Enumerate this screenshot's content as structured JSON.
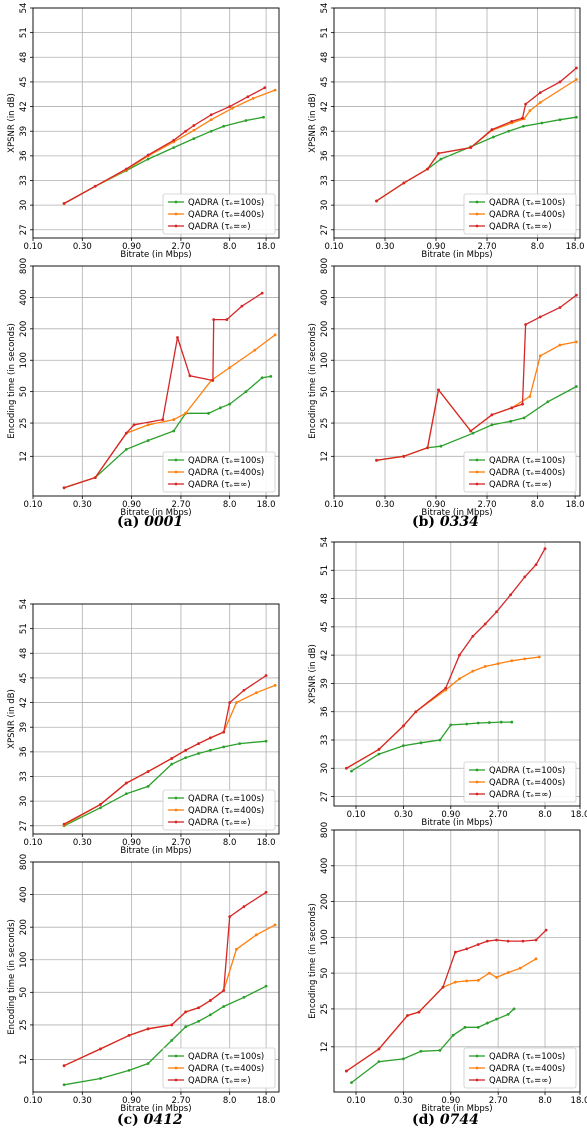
{
  "legend_labels": [
    "QADRA (τₑ=100s)",
    "QADRA (τₑ=400s)",
    "QADRA (τₑ=∞)"
  ],
  "series_colors": [
    "#2ca02c",
    "#ff7f0e",
    "#d62728"
  ],
  "captions": [
    {
      "label": "(a)",
      "name": "0001"
    },
    {
      "label": "(b)",
      "name": "0334"
    },
    {
      "label": "(c)",
      "name": "0412"
    },
    {
      "label": "(d)",
      "name": "0744"
    }
  ],
  "chart_data": [
    {
      "id": "a-psnr",
      "type": "line",
      "scale_x": "log",
      "xlabel": "Bitrate (in Mbps)",
      "ylabel": "XPSNR (in dB)",
      "xticks": [
        "0.10",
        "0.30",
        "0.90",
        "2.70",
        "8.0",
        "18.0"
      ],
      "xtick_values": [
        0.1,
        0.3,
        0.9,
        2.7,
        8.0,
        18.0
      ],
      "yticks": [
        "27",
        "30",
        "33",
        "36",
        "39",
        "42",
        "45",
        "48",
        "51",
        "54"
      ],
      "xlim": [
        0.1,
        24
      ],
      "ylim": [
        26,
        54
      ],
      "grid": true,
      "legend": "lower-right",
      "series": [
        {
          "name": "QADRA (τₑ=100s)",
          "x": [
            0.2,
            0.4,
            0.8,
            1.3,
            2.3,
            3.6,
            5.3,
            7.0,
            11.5,
            17.0
          ],
          "y": [
            30.2,
            32.3,
            34.2,
            35.6,
            37.0,
            38.1,
            39.0,
            39.6,
            40.3,
            40.7
          ]
        },
        {
          "name": "QADRA (τₑ=400s)",
          "x": [
            0.2,
            0.4,
            0.8,
            1.3,
            2.3,
            3.6,
            5.3,
            8.5,
            13.5,
            22.0
          ],
          "y": [
            30.2,
            32.3,
            34.3,
            36.0,
            37.7,
            39.1,
            40.4,
            41.8,
            43.0,
            44.0
          ]
        },
        {
          "name": "QADRA (τₑ=∞)",
          "x": [
            0.2,
            0.4,
            0.8,
            1.3,
            2.3,
            3.0,
            3.6,
            5.3,
            8.0,
            12.0,
            17.5
          ],
          "y": [
            30.2,
            32.3,
            34.4,
            36.1,
            37.9,
            39.0,
            39.7,
            41.0,
            42.0,
            43.2,
            44.3
          ]
        }
      ]
    },
    {
      "id": "b-psnr",
      "type": "line",
      "scale_x": "log",
      "xlabel": "Bitrate (in Mbps)",
      "ylabel": "XPSNR (in dB)",
      "xticks": [
        "0.10",
        "0.30",
        "0.90",
        "2.70",
        "8.0",
        "18.0"
      ],
      "xtick_values": [
        0.1,
        0.3,
        0.9,
        2.7,
        8.0,
        18.0
      ],
      "yticks": [
        "27",
        "30",
        "33",
        "36",
        "39",
        "42",
        "45",
        "48",
        "51",
        "54"
      ],
      "xlim": [
        0.1,
        20
      ],
      "ylim": [
        26,
        54
      ],
      "grid": true,
      "legend": "lower-right",
      "series": [
        {
          "name": "QADRA (τₑ=100s)",
          "x": [
            0.25,
            0.45,
            0.75,
            1.0,
            1.9,
            3.1,
            4.3,
            5.9,
            8.8,
            13.0,
            18.5
          ],
          "y": [
            30.5,
            32.7,
            34.4,
            35.6,
            37.1,
            38.3,
            39.0,
            39.6,
            40.0,
            40.4,
            40.7
          ]
        },
        {
          "name": "QADRA (τₑ=400s)",
          "x": [
            0.25,
            0.45,
            0.75,
            0.95,
            1.9,
            3.0,
            4.6,
            6.0,
            6.8,
            8.5,
            18.5
          ],
          "y": [
            30.5,
            32.7,
            34.4,
            36.3,
            37.0,
            39.1,
            40.0,
            40.5,
            41.5,
            42.5,
            45.3
          ]
        },
        {
          "name": "QADRA (τₑ=∞)",
          "x": [
            0.25,
            0.45,
            0.75,
            0.95,
            1.9,
            3.0,
            4.6,
            5.8,
            6.2,
            8.5,
            13.0,
            18.5
          ],
          "y": [
            30.5,
            32.7,
            34.4,
            36.3,
            37.0,
            39.2,
            40.2,
            40.6,
            42.3,
            43.7,
            45.0,
            46.7
          ]
        }
      ]
    },
    {
      "id": "a-time",
      "type": "line",
      "scale_x": "log",
      "scale_y": "log",
      "xlabel": "Bitrate (in Mbps)",
      "ylabel": "Encoding time (in seconds)",
      "xticks": [
        "0.10",
        "0.30",
        "0.90",
        "2.70",
        "8.0",
        "18.0"
      ],
      "xtick_values": [
        0.1,
        0.3,
        0.9,
        2.7,
        8.0,
        18.0
      ],
      "yticks": [
        "12",
        "25",
        "50",
        "100",
        "200",
        "400",
        "800"
      ],
      "ytick_values": [
        12,
        25,
        50,
        100,
        200,
        400,
        800
      ],
      "xlim": [
        0.1,
        24
      ],
      "ylim": [
        5,
        800
      ],
      "grid": true,
      "legend": "lower-right",
      "series": [
        {
          "name": "QADRA (τₑ=100s)",
          "x": [
            0.2,
            0.4,
            0.8,
            1.3,
            2.3,
            3.0,
            5.0,
            6.5,
            8.0,
            11.5,
            16.5,
            20.0
          ],
          "y": [
            6,
            7.5,
            14,
            17,
            21,
            31,
            31,
            35,
            38,
            50,
            68,
            70
          ]
        },
        {
          "name": "QADRA (τₑ=400s)",
          "x": [
            0.2,
            0.4,
            0.8,
            1.3,
            2.3,
            3.0,
            5.3,
            8.0,
            14.0,
            22.0
          ],
          "y": [
            6,
            7.5,
            20,
            24,
            27,
            31,
            64,
            85,
            125,
            175
          ]
        },
        {
          "name": "QADRA (τₑ=∞)",
          "x": [
            0.2,
            0.4,
            0.8,
            0.95,
            1.8,
            2.5,
            3.3,
            5.5,
            5.6,
            7.5,
            10.5,
            16.5
          ],
          "y": [
            6,
            7.5,
            20,
            24,
            27,
            165,
            71,
            64,
            245,
            245,
            330,
            440
          ]
        }
      ]
    },
    {
      "id": "b-time",
      "type": "line",
      "scale_x": "log",
      "scale_y": "log",
      "xlabel": "Bitrate (in Mbps)",
      "ylabel": "Encoding time (in seconds)",
      "xticks": [
        "0.10",
        "0.30",
        "0.90",
        "2.70",
        "8.0",
        "18.0"
      ],
      "xtick_values": [
        0.1,
        0.3,
        0.9,
        2.7,
        8.0,
        18.0
      ],
      "yticks": [
        "12",
        "25",
        "50",
        "100",
        "200",
        "400",
        "800"
      ],
      "ytick_values": [
        12,
        25,
        50,
        100,
        200,
        400,
        800
      ],
      "xlim": [
        0.1,
        20
      ],
      "ylim": [
        5,
        800
      ],
      "grid": true,
      "legend": "lower-right",
      "series": [
        {
          "name": "QADRA (τₑ=100s)",
          "x": [
            0.25,
            0.45,
            0.75,
            1.0,
            2.0,
            3.0,
            4.5,
            6.0,
            10.0,
            18.5
          ],
          "y": [
            11,
            12,
            14.5,
            15,
            20,
            24,
            26,
            28,
            40,
            56
          ]
        },
        {
          "name": "QADRA (τₑ=400s)",
          "x": [
            0.25,
            0.45,
            0.75,
            0.95,
            1.9,
            3.0,
            4.6,
            6.8,
            8.5,
            13.0,
            18.5
          ],
          "y": [
            11,
            12,
            14.5,
            52,
            21,
            30,
            35,
            45,
            110,
            140,
            150
          ]
        },
        {
          "name": "QADRA (τₑ=∞)",
          "x": [
            0.25,
            0.45,
            0.75,
            0.95,
            1.9,
            3.0,
            4.6,
            5.8,
            6.2,
            8.5,
            13.0,
            18.5
          ],
          "y": [
            11,
            12,
            14.5,
            52,
            21,
            30,
            35,
            38,
            220,
            260,
            320,
            420
          ]
        }
      ]
    },
    {
      "id": "c-psnr",
      "type": "line",
      "scale_x": "log",
      "xlabel": "Bitrate (in Mbps)",
      "ylabel": "XPSNR (in dB)",
      "xticks": [
        "0.10",
        "0.30",
        "0.90",
        "2.70",
        "8.0",
        "18.0"
      ],
      "xtick_values": [
        0.1,
        0.3,
        0.9,
        2.7,
        8.0,
        18.0
      ],
      "yticks": [
        "27",
        "30",
        "33",
        "36",
        "39",
        "42",
        "45",
        "48",
        "51",
        "54"
      ],
      "xlim": [
        0.1,
        24
      ],
      "ylim": [
        26,
        54
      ],
      "grid": true,
      "legend": "lower-right",
      "series": [
        {
          "name": "QADRA (τₑ=100s)",
          "x": [
            0.2,
            0.45,
            0.8,
            1.3,
            2.2,
            3.0,
            4.0,
            5.2,
            7.0,
            10.0,
            18.0
          ],
          "y": [
            27.0,
            29.2,
            30.9,
            31.8,
            34.5,
            35.3,
            35.8,
            36.2,
            36.6,
            37.0,
            37.3
          ]
        },
        {
          "name": "QADRA (τₑ=400s)",
          "x": [
            0.2,
            0.45,
            0.8,
            1.3,
            2.2,
            3.0,
            4.0,
            5.2,
            7.0,
            9.3,
            14.5,
            22.0
          ],
          "y": [
            27.1,
            29.6,
            32.2,
            33.6,
            35.2,
            36.2,
            37.0,
            37.7,
            38.4,
            42.0,
            43.2,
            44.1
          ]
        },
        {
          "name": "QADRA (τₑ=∞)",
          "x": [
            0.2,
            0.45,
            0.8,
            1.3,
            2.2,
            3.0,
            4.0,
            5.2,
            7.0,
            8.0,
            11.0,
            18.0
          ],
          "y": [
            27.2,
            29.6,
            32.2,
            33.6,
            35.2,
            36.2,
            37.0,
            37.7,
            38.4,
            42.0,
            43.5,
            45.3
          ]
        }
      ]
    },
    {
      "id": "c-time",
      "type": "line",
      "scale_x": "log",
      "scale_y": "log",
      "xlabel": "Bitrate (in Mbps)",
      "ylabel": "Encoding time (in seconds)",
      "xticks": [
        "0.10",
        "0.30",
        "0.90",
        "2.70",
        "8.0",
        "18.0"
      ],
      "xtick_values": [
        0.1,
        0.3,
        0.9,
        2.7,
        8.0,
        18.0
      ],
      "yticks": [
        "12",
        "25",
        "50",
        "100",
        "200",
        "400",
        "800"
      ],
      "ytick_values": [
        12,
        25,
        50,
        100,
        200,
        400,
        800
      ],
      "xlim": [
        0.1,
        24
      ],
      "ylim": [
        6,
        800
      ],
      "grid": true,
      "legend": "lower-right",
      "series": [
        {
          "name": "QADRA (τₑ=100s)",
          "x": [
            0.2,
            0.45,
            0.85,
            1.3,
            2.2,
            3.0,
            4.0,
            5.2,
            7.0,
            11.0,
            18.0
          ],
          "y": [
            7,
            8,
            9.5,
            11,
            18,
            24,
            27,
            31,
            37,
            45,
            57
          ]
        },
        {
          "name": "QADRA (τₑ=400s)",
          "x": [
            0.2,
            0.45,
            0.85,
            1.3,
            2.2,
            3.0,
            4.0,
            5.2,
            7.0,
            9.3,
            14.5,
            22.0
          ],
          "y": [
            10.5,
            15,
            20,
            23,
            25,
            33,
            36,
            42,
            52,
            125,
            170,
            210
          ]
        },
        {
          "name": "QADRA (τₑ=∞)",
          "x": [
            0.2,
            0.45,
            0.85,
            1.3,
            2.2,
            3.0,
            4.0,
            5.2,
            7.0,
            8.0,
            11.0,
            18.0
          ],
          "y": [
            10.5,
            15,
            20,
            23,
            25,
            33,
            36,
            42,
            52,
            250,
            310,
            420
          ]
        }
      ]
    },
    {
      "id": "d-psnr",
      "type": "line",
      "scale_x": "log",
      "xlabel": "Bitrate (in Mbps)",
      "ylabel": "XPSNR (in dB)",
      "xticks": [
        "0.10",
        "0.30",
        "0.90",
        "2.70",
        "8.0",
        "18.0"
      ],
      "xtick_values": [
        0.1,
        0.3,
        0.9,
        2.7,
        8.0,
        18.0
      ],
      "yticks": [
        "27",
        "30",
        "33",
        "36",
        "39",
        "42",
        "45",
        "48",
        "51",
        "54"
      ],
      "xlim": [
        0.06,
        18
      ],
      "ylim": [
        26,
        54
      ],
      "grid": true,
      "legend": "lower-right",
      "series": [
        {
          "name": "QADRA (τₑ=100s)",
          "x": [
            0.09,
            0.17,
            0.3,
            0.45,
            0.7,
            0.9,
            1.3,
            1.7,
            2.2,
            2.9,
            3.7
          ],
          "y": [
            29.7,
            31.5,
            32.4,
            32.7,
            33.0,
            34.6,
            34.7,
            34.8,
            34.85,
            34.9,
            34.9
          ]
        },
        {
          "name": "QADRA (τₑ=400s)",
          "x": [
            0.08,
            0.17,
            0.3,
            0.4,
            0.8,
            1.1,
            1.5,
            2.0,
            2.7,
            3.7,
            5.0,
            7.0
          ],
          "y": [
            30.0,
            32.0,
            34.5,
            36.0,
            38.3,
            39.5,
            40.3,
            40.8,
            41.1,
            41.4,
            41.6,
            41.8
          ]
        },
        {
          "name": "QADRA (τₑ=∞)",
          "x": [
            0.08,
            0.17,
            0.3,
            0.4,
            0.8,
            1.1,
            1.5,
            2.0,
            2.6,
            3.6,
            5.0,
            6.5,
            8.0
          ],
          "y": [
            30.0,
            32.0,
            34.5,
            36.0,
            38.5,
            42.0,
            44.0,
            45.3,
            46.6,
            48.4,
            50.3,
            51.6,
            53.3
          ]
        }
      ]
    },
    {
      "id": "d-time",
      "type": "line",
      "scale_x": "log",
      "scale_y": "log",
      "xlabel": "Bitrate (in Mbps)",
      "ylabel": "Encoding time (in seconds)",
      "xticks": [
        "0.10",
        "0.30",
        "0.90",
        "2.70",
        "8.0",
        "18.0"
      ],
      "xtick_values": [
        0.1,
        0.3,
        0.9,
        2.7,
        8.0,
        18.0
      ],
      "yticks": [
        "12",
        "25",
        "50",
        "100",
        "200",
        "400",
        "800"
      ],
      "ytick_values": [
        12,
        25,
        50,
        100,
        200,
        400,
        800
      ],
      "xlim": [
        0.06,
        18
      ],
      "ylim": [
        5,
        800
      ],
      "grid": true,
      "legend": "lower-right",
      "series": [
        {
          "name": "QADRA (τₑ=100s)",
          "x": [
            0.09,
            0.17,
            0.3,
            0.45,
            0.7,
            0.95,
            1.25,
            1.7,
            2.1,
            2.6,
            3.4,
            3.9
          ],
          "y": [
            6,
            9,
            9.5,
            11,
            11.2,
            15,
            17.5,
            17.5,
            19,
            20.5,
            22.5,
            25
          ]
        },
        {
          "name": "QADRA (τₑ=400s)",
          "x": [
            0.08,
            0.17,
            0.33,
            0.43,
            0.75,
            1.0,
            1.3,
            1.7,
            2.2,
            2.6,
            3.4,
            4.5,
            6.5
          ],
          "y": [
            7.5,
            11.5,
            22,
            23.5,
            38,
            42,
            43,
            43.5,
            50,
            46,
            50.5,
            55,
            66
          ]
        },
        {
          "name": "QADRA (τₑ=∞)",
          "x": [
            0.08,
            0.17,
            0.33,
            0.43,
            0.75,
            1.0,
            1.3,
            1.7,
            2.1,
            2.6,
            3.4,
            4.8,
            6.5,
            8.2
          ],
          "y": [
            7.5,
            11.5,
            22,
            23.5,
            38,
            75,
            80,
            87,
            93,
            95,
            93,
            93,
            95,
            115
          ]
        }
      ]
    }
  ]
}
